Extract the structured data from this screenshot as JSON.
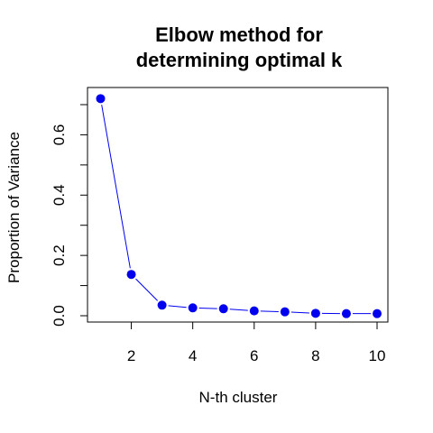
{
  "chart_data": {
    "type": "line",
    "title_line1": "Elbow method for",
    "title_line2": "determining optimal k",
    "xlabel": "N-th cluster",
    "ylabel": "Proportion of Variance",
    "xlim": [
      1,
      10
    ],
    "ylim": [
      0,
      0.72
    ],
    "x_ticks": [
      2,
      4,
      6,
      8,
      10
    ],
    "x_tick_labels": [
      "2",
      "4",
      "6",
      "8",
      "10"
    ],
    "y_ticks": [
      0.0,
      0.1,
      0.2,
      0.3,
      0.4,
      0.5,
      0.6,
      0.7
    ],
    "y_tick_labels": [
      "0.0",
      "",
      "0.2",
      "",
      "0.4",
      "",
      "0.6",
      ""
    ],
    "grid": false,
    "series": [
      {
        "color": "#0000ee",
        "marker": "filled-circle",
        "x": [
          1,
          2,
          3,
          4,
          5,
          6,
          7,
          8,
          9,
          10
        ],
        "y": [
          0.72,
          0.137,
          0.035,
          0.026,
          0.023,
          0.016,
          0.013,
          0.008,
          0.007,
          0.007
        ]
      }
    ]
  }
}
